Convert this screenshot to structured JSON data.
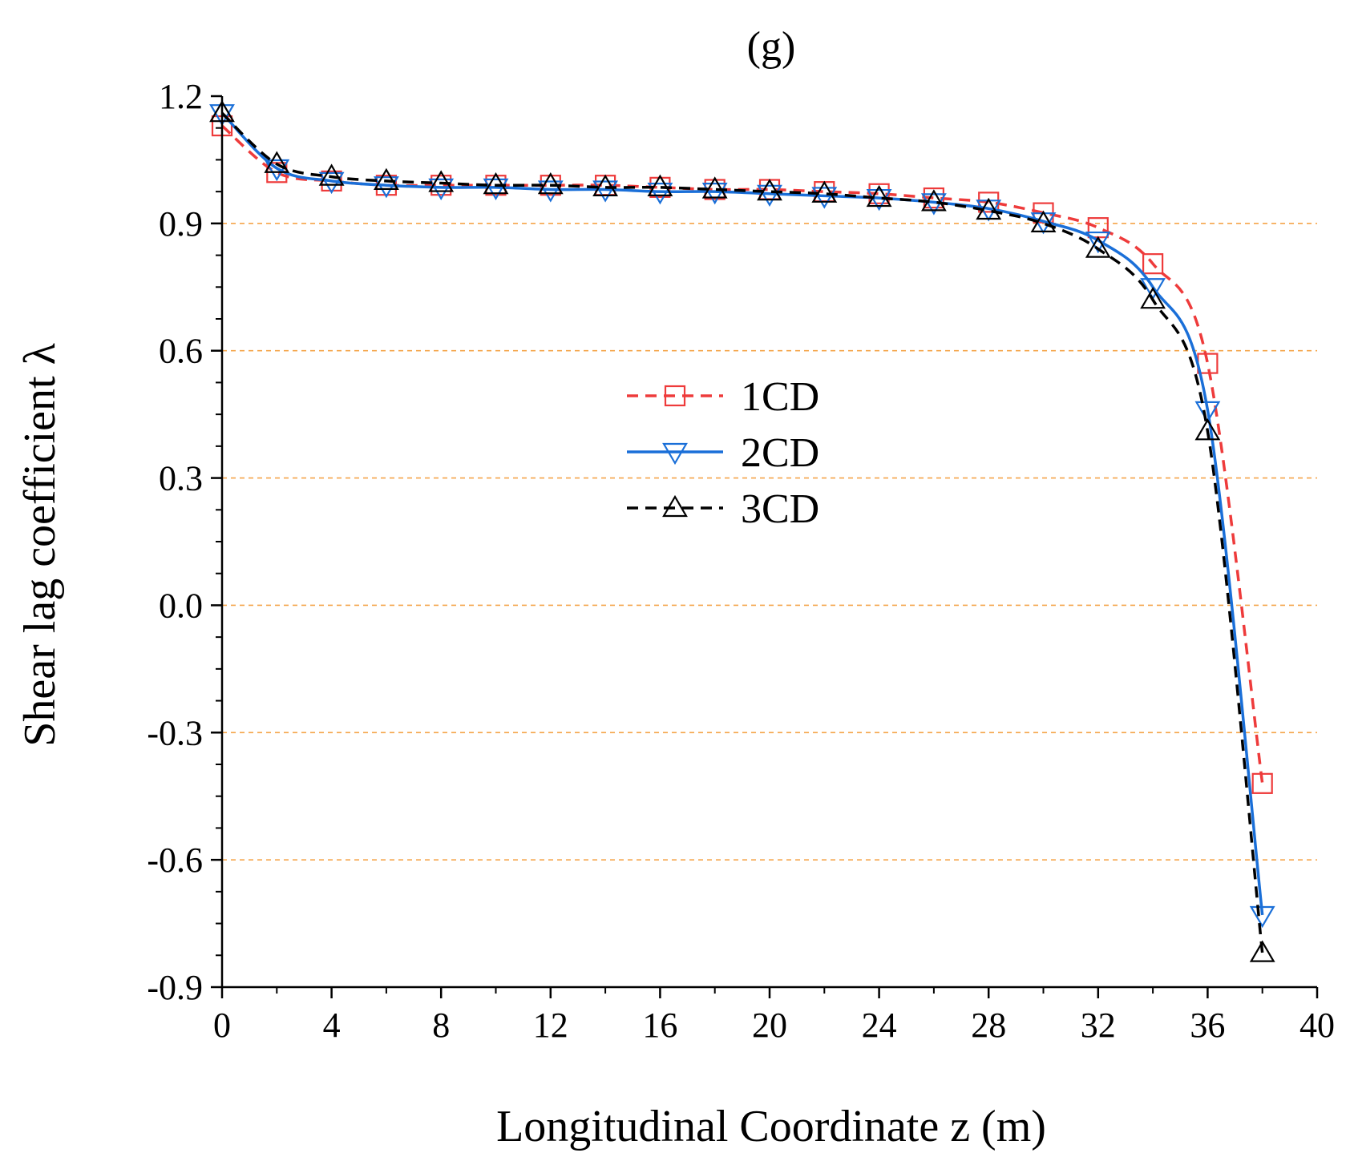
{
  "chart_data": {
    "type": "line",
    "title": "(g)",
    "xlabel": "Longitudinal Coordinate z (m)",
    "ylabel": "Shear lag coefficient λ",
    "xlim": [
      0,
      40
    ],
    "ylim": [
      -0.9,
      1.2
    ],
    "xticks": [
      0,
      4,
      8,
      12,
      16,
      20,
      24,
      28,
      32,
      36,
      40
    ],
    "xtick_labels": [
      "0",
      "4",
      "8",
      "12",
      "16",
      "20",
      "24",
      "28",
      "32",
      "36",
      "40"
    ],
    "yticks": [
      -0.9,
      -0.6,
      -0.3,
      0.0,
      0.3,
      0.6,
      0.9,
      1.2
    ],
    "ytick_labels": [
      "-0.9",
      "-0.6",
      "-0.3",
      "0.0",
      "0.3",
      "0.6",
      "0.9",
      "1.2"
    ],
    "grid": "horizontal dashed",
    "grid_lines": [
      -0.6,
      -0.3,
      0.0,
      0.3,
      0.6,
      0.9
    ],
    "grid_color": "#f5a54a",
    "legend_position": "center",
    "series": [
      {
        "name": "1CD",
        "color": "#ee3b3b",
        "line": "dashed",
        "marker": "square",
        "x": [
          0,
          2,
          4,
          6,
          8,
          10,
          12,
          14,
          16,
          18,
          20,
          22,
          24,
          26,
          28,
          30,
          32,
          34,
          36,
          38
        ],
        "y": [
          1.13,
          1.02,
          1.0,
          0.99,
          0.99,
          0.99,
          0.99,
          0.99,
          0.985,
          0.98,
          0.98,
          0.975,
          0.97,
          0.96,
          0.95,
          0.925,
          0.89,
          0.805,
          0.57,
          -0.42
        ]
      },
      {
        "name": "2CD",
        "color": "#1a6fd8",
        "line": "solid",
        "marker": "triangle-down",
        "x": [
          0,
          2,
          4,
          6,
          8,
          10,
          12,
          14,
          16,
          18,
          20,
          22,
          24,
          26,
          28,
          30,
          32,
          34,
          36,
          38
        ],
        "y": [
          1.16,
          1.03,
          1.0,
          0.99,
          0.985,
          0.985,
          0.98,
          0.98,
          0.975,
          0.975,
          0.97,
          0.965,
          0.96,
          0.95,
          0.935,
          0.905,
          0.86,
          0.75,
          0.46,
          -0.73
        ]
      },
      {
        "name": "3CD",
        "color": "#000000",
        "line": "dashed",
        "marker": "triangle-up",
        "x": [
          0,
          2,
          4,
          6,
          8,
          10,
          12,
          14,
          16,
          18,
          20,
          22,
          24,
          26,
          28,
          30,
          32,
          34,
          36,
          38
        ],
        "y": [
          1.16,
          1.04,
          1.01,
          1.0,
          0.995,
          0.99,
          0.99,
          0.985,
          0.985,
          0.98,
          0.975,
          0.97,
          0.96,
          0.95,
          0.93,
          0.9,
          0.84,
          0.72,
          0.41,
          -0.82
        ]
      }
    ]
  }
}
